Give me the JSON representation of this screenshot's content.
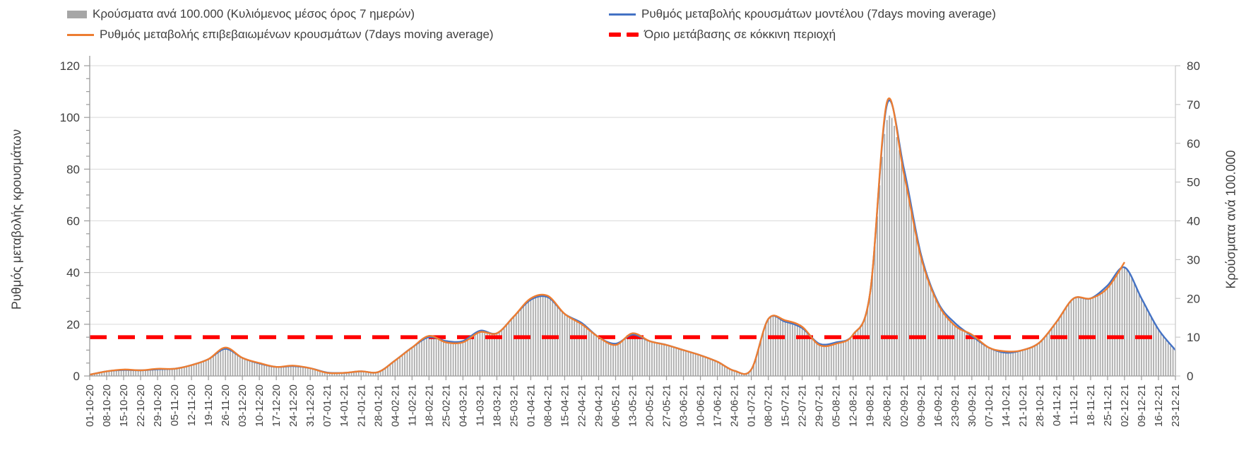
{
  "legend": {
    "items": [
      {
        "id": "cases-per-100k",
        "label": "Κρούσματα ανά 100.000 (Κυλιόμενος μέσος όρος 7 ημερών)",
        "swatch": "bar",
        "color": "#a6a6a6"
      },
      {
        "id": "model-rate",
        "label": "Ρυθμός μεταβολής κρουσμάτων μοντέλου (7days moving average)",
        "swatch": "line",
        "color": "#4472c4"
      },
      {
        "id": "confirmed-rate",
        "label": "Ρυθμός μεταβολής επιβεβαιωμένων κρουσμάτων (7days moving average)",
        "swatch": "line",
        "color": "#ed7d31"
      },
      {
        "id": "red-zone-threshold",
        "label": "Όριο μετάβασης σε κόκκινη περιοχή",
        "swatch": "dash",
        "color": "#ff0000"
      }
    ]
  },
  "left_axis": {
    "title": "Ρυθμός μεταβολής κρουσμάτων",
    "min": 0,
    "max": 120,
    "major_step": 20,
    "minor_step": 5,
    "ticks": [
      0,
      20,
      40,
      60,
      80,
      100,
      120
    ]
  },
  "right_axis": {
    "title": "Κρούσματα ανά 100.000",
    "min": 0,
    "max": 80,
    "major_step": 10,
    "ticks": [
      0,
      10,
      20,
      30,
      40,
      50,
      60,
      70,
      80
    ]
  },
  "chart_data": {
    "type": "bar",
    "subtype": "combo-bar-line-weekly",
    "grid": "horizontal",
    "legend_position": "top",
    "categories": [
      "01-10-20",
      "08-10-20",
      "15-10-20",
      "22-10-20",
      "29-10-20",
      "05-11-20",
      "12-11-20",
      "19-11-20",
      "26-11-20",
      "03-12-20",
      "10-12-20",
      "17-12-20",
      "24-12-20",
      "31-12-20",
      "07-01-21",
      "14-01-21",
      "21-01-21",
      "28-01-21",
      "04-02-21",
      "11-02-21",
      "18-02-21",
      "25-02-21",
      "04-03-21",
      "11-03-21",
      "18-03-21",
      "25-03-21",
      "01-04-21",
      "08-04-21",
      "15-04-21",
      "22-04-21",
      "29-04-21",
      "06-05-21",
      "13-05-21",
      "20-05-21",
      "27-05-21",
      "03-06-21",
      "10-06-21",
      "17-06-21",
      "24-06-21",
      "01-07-21",
      "08-07-21",
      "15-07-21",
      "22-07-21",
      "29-07-21",
      "05-08-21",
      "12-08-21",
      "19-08-21",
      "26-08-21",
      "02-09-21",
      "09-09-21",
      "16-09-21",
      "23-09-21",
      "30-09-21",
      "07-10-21",
      "14-10-21",
      "21-10-21",
      "28-10-21",
      "04-11-21",
      "11-11-21",
      "18-11-21",
      "25-11-21",
      "02-12-21",
      "09-12-21",
      "16-12-21",
      "23-12-21"
    ],
    "series": [
      {
        "name": "Κρούσματα ανά 100.000 (Κυλιόμενος μέσος όρος 7 ημερών)",
        "type": "bar",
        "axis": "right",
        "color": "#ababab",
        "values": [
          0.3,
          1.2,
          1.7,
          1.5,
          1.9,
          1.9,
          2.8,
          4.3,
          7.3,
          4.7,
          3.3,
          2.3,
          2.7,
          2.0,
          0.8,
          0.8,
          1.2,
          1.0,
          4.0,
          7.3,
          10.3,
          8.7,
          8.7,
          11.3,
          11.0,
          15.3,
          20.0,
          20.7,
          16.0,
          13.3,
          10.0,
          8.0,
          11.0,
          9.0,
          8.0,
          6.7,
          5.3,
          3.7,
          1.3,
          1.7,
          14.7,
          14.3,
          12.7,
          8.0,
          8.3,
          10.7,
          21.3,
          66.0,
          52.0,
          30.7,
          18.7,
          13.0,
          10.7,
          7.3,
          6.3,
          6.7,
          8.7,
          14.0,
          20.0,
          20.0,
          23.0,
          28.0,
          20.0,
          12.0,
          6.7
        ]
      },
      {
        "name": "Ρυθμός μεταβολής κρουσμάτων μοντέλου (7days moving average)",
        "type": "line",
        "axis": "left",
        "color": "#4472c4",
        "values": [
          0.5,
          1.8,
          2.3,
          2.2,
          2.6,
          2.8,
          4.2,
          6.5,
          10.5,
          7,
          4.8,
          3.5,
          3.8,
          3,
          1.3,
          1.2,
          1.8,
          1.5,
          6,
          11,
          15,
          13.5,
          13.5,
          17.5,
          16.5,
          23,
          29.5,
          30.5,
          24,
          20.5,
          15,
          12.5,
          16,
          13.5,
          12,
          10,
          8,
          5.5,
          2,
          2.5,
          22,
          21,
          18.5,
          12.5,
          13,
          16,
          32,
          105,
          80,
          47,
          28.5,
          20.5,
          15.5,
          11,
          9,
          10,
          13,
          21,
          30,
          30,
          35,
          42,
          30,
          18,
          10
        ]
      },
      {
        "name": "Ρυθμός μεταβολής επιβεβαιωμένων κρουσμάτων (7days moving average)",
        "type": "line",
        "axis": "left",
        "color": "#ed7d31",
        "values": [
          0.5,
          1.8,
          2.5,
          2.2,
          2.8,
          2.8,
          4.2,
          6.5,
          11,
          7,
          5,
          3.5,
          4,
          3,
          1.2,
          1.2,
          1.8,
          1.5,
          6,
          11,
          15.5,
          13,
          13,
          17,
          16.5,
          23,
          30,
          31,
          24,
          20,
          15,
          12,
          16.5,
          13.5,
          12,
          10,
          8,
          5.5,
          2,
          2.5,
          22,
          21.5,
          19,
          12,
          12.5,
          16,
          32,
          106,
          78,
          46,
          28,
          19.5,
          16,
          11,
          9.5,
          10,
          13,
          21,
          30,
          30,
          34,
          44,
          null,
          null,
          null
        ]
      },
      {
        "name": "Όριο μετάβασης σε κόκκινη περιοχή",
        "type": "threshold",
        "axis": "right",
        "color": "#ff0000",
        "value": 10
      }
    ],
    "left_axis_range": [
      0,
      120
    ],
    "right_axis_range": [
      0,
      80
    ],
    "xlabel": "",
    "ylabel_left": "Ρυθμός μεταβολής κρουσμάτων",
    "ylabel_right": "Κρούσματα ανά 100.000"
  }
}
